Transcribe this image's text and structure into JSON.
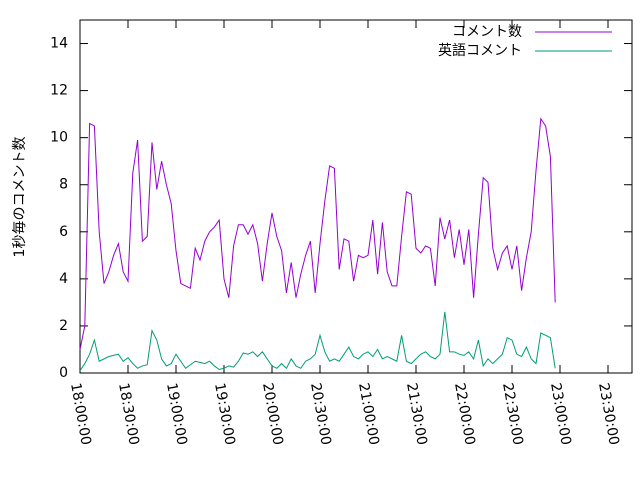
{
  "chart_data": {
    "type": "line",
    "ylabel": "1秒毎のコメント数",
    "legend": "top-right",
    "ylim": [
      0,
      15
    ],
    "yticks": [
      0,
      2,
      4,
      6,
      8,
      10,
      12,
      14
    ],
    "xlim": [
      1080,
      1425
    ],
    "xticks": [
      {
        "value": 1080,
        "label": "18:00:00"
      },
      {
        "value": 1110,
        "label": "18:30:00"
      },
      {
        "value": 1140,
        "label": "19:00:00"
      },
      {
        "value": 1170,
        "label": "19:30:00"
      },
      {
        "value": 1200,
        "label": "20:00:00"
      },
      {
        "value": 1230,
        "label": "20:30:00"
      },
      {
        "value": 1260,
        "label": "21:00:00"
      },
      {
        "value": 1290,
        "label": "21:30:00"
      },
      {
        "value": 1320,
        "label": "22:00:00"
      },
      {
        "value": 1350,
        "label": "22:30:00"
      },
      {
        "value": 1380,
        "label": "23:00:00"
      },
      {
        "value": 1410,
        "label": "23:30:00"
      }
    ],
    "x": [
      1080,
      1083,
      1086,
      1089,
      1092,
      1095,
      1098,
      1101,
      1104,
      1107,
      1110,
      1113,
      1116,
      1119,
      1122,
      1125,
      1128,
      1131,
      1134,
      1137,
      1140,
      1143,
      1146,
      1149,
      1152,
      1155,
      1158,
      1161,
      1164,
      1167,
      1170,
      1173,
      1176,
      1179,
      1182,
      1185,
      1188,
      1191,
      1194,
      1197,
      1200,
      1203,
      1206,
      1209,
      1212,
      1215,
      1218,
      1221,
      1224,
      1227,
      1230,
      1233,
      1236,
      1239,
      1242,
      1245,
      1248,
      1251,
      1254,
      1257,
      1260,
      1263,
      1266,
      1269,
      1272,
      1275,
      1278,
      1281,
      1284,
      1287,
      1290,
      1293,
      1296,
      1299,
      1302,
      1305,
      1308,
      1311,
      1314,
      1317,
      1320,
      1323,
      1326,
      1329,
      1332,
      1335,
      1338,
      1341,
      1344,
      1347,
      1350,
      1353,
      1356,
      1359,
      1362,
      1365,
      1368,
      1371,
      1374,
      1377
    ],
    "series": [
      {
        "name": "コメント数",
        "color": "#9400d3",
        "values": [
          1.0,
          2,
          10.6,
          10.5,
          6,
          3.8,
          4.3,
          5,
          5.5,
          4.3,
          3.9,
          8.5,
          9.9,
          5.6,
          5.8,
          9.8,
          7.8,
          9.0,
          8,
          7.2,
          5.2,
          3.8,
          3.7,
          3.6,
          5.3,
          4.8,
          5.6,
          6.0,
          6.2,
          6.5,
          4,
          3.2,
          5.4,
          6.3,
          6.3,
          5.9,
          6.3,
          5.5,
          3.9,
          5.5,
          6.8,
          5.8,
          5.2,
          3.4,
          4.7,
          3.2,
          4.2,
          5.0,
          5.6,
          3.4,
          5.5,
          7.3,
          8.8,
          8.7,
          4.4,
          5.7,
          5.6,
          3.9,
          5.0,
          4.9,
          5.0,
          6.5,
          4.2,
          6.4,
          4.3,
          3.7,
          3.7,
          5.8,
          7.7,
          7.6,
          5.3,
          5.1,
          5.4,
          5.3,
          3.7,
          6.6,
          5.7,
          6.5,
          4.9,
          6.1,
          4.6,
          6.1,
          3.2,
          5.9,
          8.3,
          8.1,
          5.3,
          4.4,
          5.1,
          5.4,
          4.4,
          5.4,
          3.5,
          4.9,
          6.0,
          8.6,
          10.8,
          10.5,
          9.2,
          3.0
        ]
      },
      {
        "name": "英語コメント",
        "color": "#009e73",
        "values": [
          0.1,
          0.4,
          0.8,
          1.4,
          0.5,
          0.6,
          0.7,
          0.75,
          0.8,
          0.5,
          0.65,
          0.4,
          0.2,
          0.3,
          0.35,
          1.8,
          1.4,
          0.6,
          0.3,
          0.4,
          0.8,
          0.5,
          0.2,
          0.35,
          0.5,
          0.45,
          0.4,
          0.5,
          0.3,
          0.15,
          0.2,
          0.3,
          0.25,
          0.5,
          0.85,
          0.8,
          0.9,
          0.7,
          0.9,
          0.6,
          0.3,
          0.2,
          0.4,
          0.2,
          0.6,
          0.3,
          0.2,
          0.5,
          0.6,
          0.8,
          1.6,
          0.9,
          0.5,
          0.6,
          0.5,
          0.8,
          1.1,
          0.7,
          0.6,
          0.8,
          0.9,
          0.7,
          1.0,
          0.6,
          0.7,
          0.6,
          0.5,
          1.6,
          0.5,
          0.4,
          0.6,
          0.8,
          0.9,
          0.7,
          0.6,
          0.8,
          2.6,
          0.9,
          0.9,
          0.8,
          0.75,
          0.9,
          0.6,
          1.4,
          0.3,
          0.6,
          0.4,
          0.6,
          0.8,
          1.5,
          1.4,
          0.8,
          0.7,
          1.1,
          0.6,
          0.4,
          1.7,
          1.6,
          1.5,
          0.2
        ]
      }
    ]
  }
}
